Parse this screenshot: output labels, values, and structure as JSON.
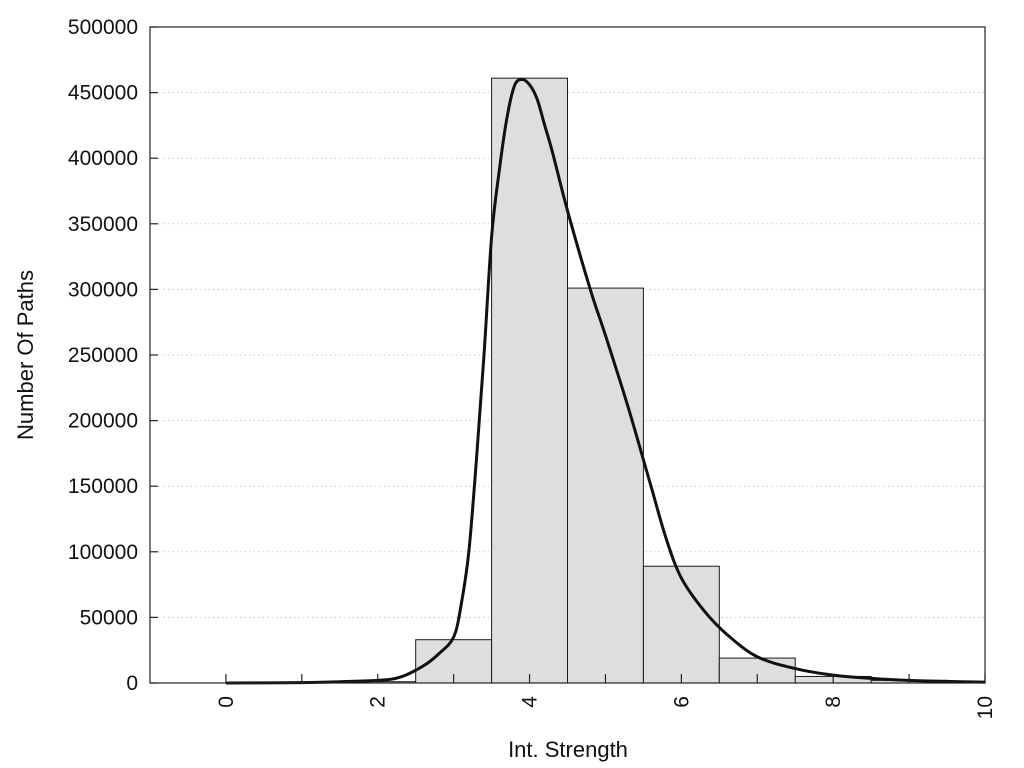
{
  "chart_data": {
    "type": "bar",
    "xlabel": "Int. Strength",
    "ylabel": "Number Of Paths",
    "xlim": [
      -1,
      10
    ],
    "ylim": [
      0,
      500000
    ],
    "x_ticks": [
      "0",
      "2",
      "4",
      "6",
      "8",
      "10"
    ],
    "y_ticks": [
      "0",
      "50000",
      "100000",
      "150000",
      "200000",
      "250000",
      "300000",
      "350000",
      "400000",
      "450000",
      "500000"
    ],
    "grid": "horizontal dotted",
    "histogram": {
      "bin_width": 1,
      "bins": [
        {
          "x": 0,
          "value": 0
        },
        {
          "x": 1,
          "value": 0
        },
        {
          "x": 2,
          "value": 1000
        },
        {
          "x": 3,
          "value": 33000
        },
        {
          "x": 4,
          "value": 461000
        },
        {
          "x": 5,
          "value": 301000
        },
        {
          "x": 6,
          "value": 89000
        },
        {
          "x": 7,
          "value": 19000
        },
        {
          "x": 8,
          "value": 5000
        },
        {
          "x": 9,
          "value": 2000
        }
      ]
    },
    "fit_curve": {
      "x": [
        0,
        1,
        1.5,
        2,
        2.3,
        2.6,
        2.8,
        3,
        3.1,
        3.2,
        3.3,
        3.4,
        3.5,
        3.6,
        3.7,
        3.8,
        3.9,
        4,
        4.1,
        4.2,
        4.3,
        4.5,
        4.8,
        5,
        5.3,
        5.6,
        5.8,
        6,
        6.3,
        6.6,
        7,
        7.5,
        8,
        8.5,
        9,
        9.5,
        10
      ],
      "y": [
        0,
        300,
        1000,
        2000,
        4500,
        13000,
        22000,
        35000,
        60000,
        100000,
        170000,
        250000,
        340000,
        390000,
        430000,
        455000,
        460000,
        456000,
        445000,
        425000,
        405000,
        360000,
        300000,
        265000,
        210000,
        150000,
        110000,
        80000,
        55000,
        37000,
        20000,
        11000,
        6000,
        3500,
        2000,
        1200,
        700
      ]
    },
    "colors": {
      "bar_fill": "#dedede",
      "bar_stroke": "#1a1a1a",
      "curve": "#111111",
      "grid": "#c8c8c8"
    }
  }
}
